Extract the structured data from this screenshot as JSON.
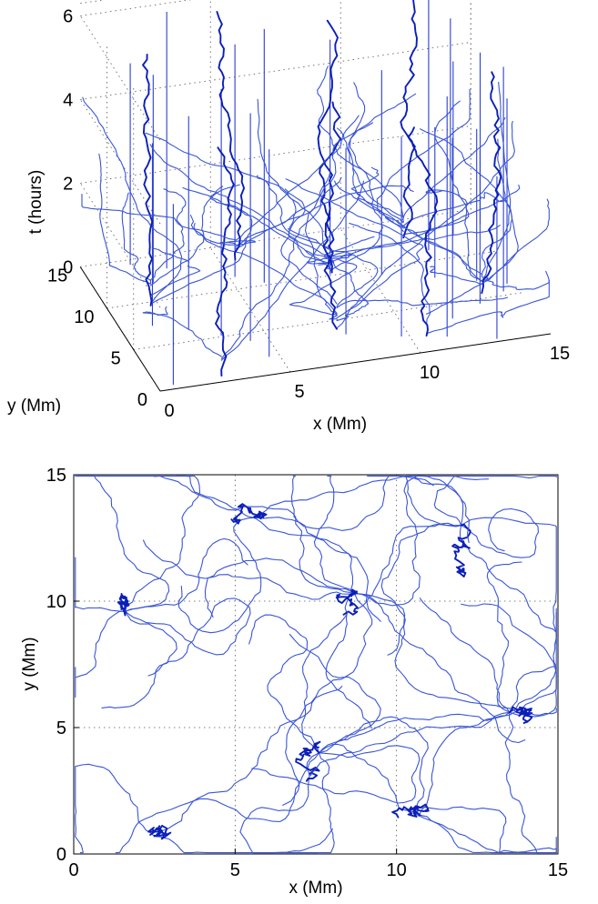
{
  "chart_data": [
    {
      "type": "line3d",
      "xlabel": "x (Mm)",
      "ylabel": "y (Mm)",
      "zlabel": "t (hours)",
      "xlim": [
        0,
        15
      ],
      "ylim": [
        0,
        15
      ],
      "zlim": [
        0,
        6.5
      ],
      "xticks": [
        "0",
        "5",
        "10",
        "15"
      ],
      "yticks": [
        "0",
        "5",
        "10",
        "15"
      ],
      "zticks": [
        "0",
        "2",
        "4",
        "6"
      ],
      "grid": true
    },
    {
      "type": "line",
      "xlabel": "x (Mm)",
      "ylabel": "y (Mm)",
      "xlim": [
        0,
        15
      ],
      "ylim": [
        0,
        15
      ],
      "xticks": [
        "0",
        "5",
        "10",
        "15"
      ],
      "yticks": [
        "0",
        "5",
        "10",
        "15"
      ],
      "grid": true
    }
  ],
  "colors": {
    "track": "#3a55d6",
    "track_bold": "#0b1fb8",
    "vertical": "#2c3fd0"
  }
}
